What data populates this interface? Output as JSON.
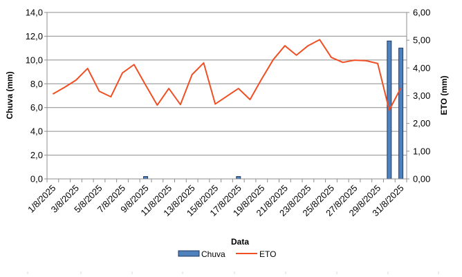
{
  "chart_data": {
    "type": "bar+line",
    "xlabel": "Data",
    "ylabel_left": "Chuva (mm)",
    "ylabel_right": "ETO (mm)",
    "left_ylim": [
      0,
      14
    ],
    "right_ylim": [
      0,
      6
    ],
    "left_ticks": [
      "0,0",
      "2,0",
      "4,0",
      "6,0",
      "8,0",
      "10,0",
      "12,0",
      "14,0"
    ],
    "right_ticks": [
      "0,00",
      "1,00",
      "2,00",
      "3,00",
      "4,00",
      "5,00",
      "6,00"
    ],
    "x_tick_labels": [
      "1/8/2025",
      "3/8/2025",
      "5/8/2025",
      "7/8/2025",
      "9/8/2025",
      "11/8/2025",
      "13/8/2025",
      "15/8/2025",
      "17/8/2025",
      "19/8/2025",
      "21/8/2025",
      "23/8/2025",
      "25/8/2025",
      "27/8/2025",
      "29/8/2025",
      "31/8/2025"
    ],
    "categories": [
      "1/8/2025",
      "2/8/2025",
      "3/8/2025",
      "4/8/2025",
      "5/8/2025",
      "6/8/2025",
      "7/8/2025",
      "8/8/2025",
      "9/8/2025",
      "10/8/2025",
      "11/8/2025",
      "12/8/2025",
      "13/8/2025",
      "14/8/2025",
      "15/8/2025",
      "16/8/2025",
      "17/8/2025",
      "18/8/2025",
      "19/8/2025",
      "20/8/2025",
      "21/8/2025",
      "22/8/2025",
      "23/8/2025",
      "24/8/2025",
      "25/8/2025",
      "26/8/2025",
      "27/8/2025",
      "28/8/2025",
      "29/8/2025",
      "30/8/2025",
      "31/8/2025"
    ],
    "grid": true,
    "legend_position": "bottom",
    "series": [
      {
        "name": "Chuva",
        "type": "bar",
        "axis": "left",
        "color": "#4F81BD",
        "values": [
          0,
          0,
          0,
          0,
          0,
          0,
          0,
          0,
          0.2,
          0,
          0,
          0,
          0,
          0,
          0,
          0,
          0.2,
          0,
          0,
          0,
          0,
          0,
          0,
          0,
          0,
          0,
          0,
          0,
          0,
          11.6,
          11.0
        ]
      },
      {
        "name": "ETO",
        "type": "line",
        "axis": "right",
        "color": "#F04E23",
        "values": [
          3.06,
          3.3,
          3.56,
          3.98,
          3.16,
          2.96,
          3.82,
          4.12,
          3.38,
          2.66,
          3.26,
          2.68,
          3.76,
          4.18,
          2.7,
          2.98,
          3.26,
          2.86,
          3.6,
          4.3,
          4.8,
          4.46,
          4.8,
          5.02,
          4.38,
          4.2,
          4.28,
          4.26,
          4.16,
          2.48,
          3.28
        ]
      }
    ]
  }
}
